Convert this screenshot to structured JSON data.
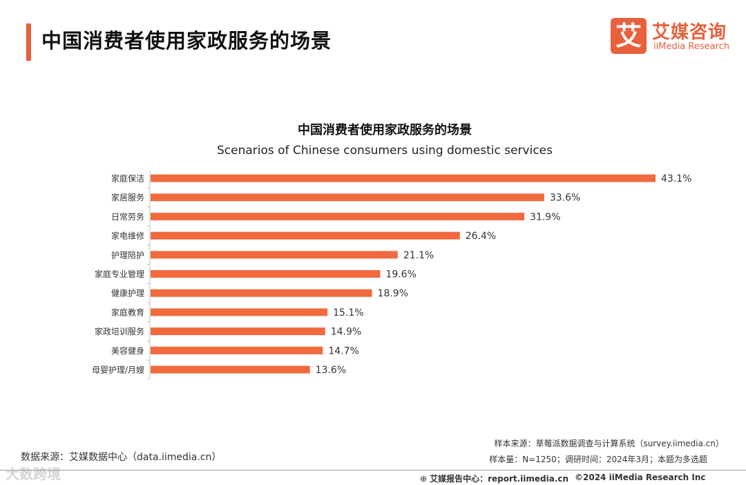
{
  "page_title": "中国消费者使用家政服务的场景",
  "logo": {
    "cn": "艾媒咨询",
    "en": "iiMedia Research",
    "mark": "艾"
  },
  "chart_data": {
    "type": "bar",
    "orientation": "horizontal",
    "title": "中国消费者使用家政服务的场景",
    "subtitle": "Scenarios of Chinese consumers using domestic services",
    "categories": [
      "家庭保洁",
      "家居服务",
      "日常劳务",
      "家电维修",
      "护理陪护",
      "家庭专业管理",
      "健康护理",
      "家庭教育",
      "家政培训服务",
      "美容健身",
      "母婴护理/月嫂"
    ],
    "values": [
      43.1,
      33.6,
      31.9,
      26.4,
      21.1,
      19.6,
      18.9,
      15.1,
      14.9,
      14.7,
      13.6
    ],
    "value_labels": [
      "43.1%",
      "33.6%",
      "31.9%",
      "26.4%",
      "21.1%",
      "19.6%",
      "18.9%",
      "15.1%",
      "14.9%",
      "14.7%",
      "13.6%"
    ],
    "unit": "%",
    "xlim": [
      0,
      43.1
    ],
    "bar_color": "#f06a3e"
  },
  "footer": {
    "data_source": "数据来源：艾媒数据中心（data.iimedia.cn）",
    "sample_source": "样本来源：草莓派数据调查与计算系统（survey.iimedia.cn）",
    "sample_size": "样本量：N=1250；调研时间：2024年3月；本题为多选题",
    "report_center": "艾媒报告中心：report.iimedia.cn",
    "copyright": "©2024  iiMedia Research  Inc",
    "watermark": "大数跨境"
  }
}
